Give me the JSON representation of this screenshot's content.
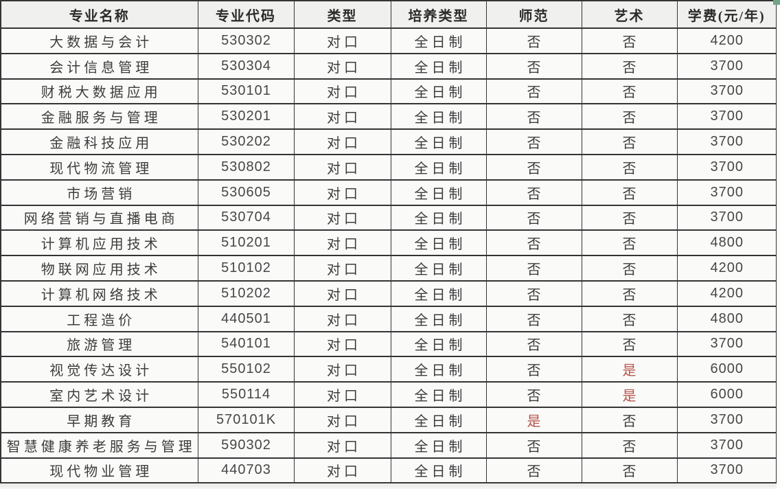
{
  "table": {
    "columns": [
      {
        "key": "name",
        "label": "专业名称"
      },
      {
        "key": "code",
        "label": "专业代码"
      },
      {
        "key": "type",
        "label": "类型"
      },
      {
        "key": "training",
        "label": "培养类型"
      },
      {
        "key": "normal",
        "label": "师范"
      },
      {
        "key": "art",
        "label": "艺术"
      },
      {
        "key": "tuition",
        "label": "学费(元/年)"
      }
    ],
    "rows": [
      {
        "name": "大数据与会计",
        "code": "530302",
        "type": "对口",
        "training": "全日制",
        "normal": "否",
        "art": "否",
        "tuition": "4200"
      },
      {
        "name": "会计信息管理",
        "code": "530304",
        "type": "对口",
        "training": "全日制",
        "normal": "否",
        "art": "否",
        "tuition": "3700"
      },
      {
        "name": "财税大数据应用",
        "code": "530101",
        "type": "对口",
        "training": "全日制",
        "normal": "否",
        "art": "否",
        "tuition": "3700"
      },
      {
        "name": "金融服务与管理",
        "code": "530201",
        "type": "对口",
        "training": "全日制",
        "normal": "否",
        "art": "否",
        "tuition": "3700"
      },
      {
        "name": "金融科技应用",
        "code": "530202",
        "type": "对口",
        "training": "全日制",
        "normal": "否",
        "art": "否",
        "tuition": "3700"
      },
      {
        "name": "现代物流管理",
        "code": "530802",
        "type": "对口",
        "training": "全日制",
        "normal": "否",
        "art": "否",
        "tuition": "3700"
      },
      {
        "name": "市场营销",
        "code": "530605",
        "type": "对口",
        "training": "全日制",
        "normal": "否",
        "art": "否",
        "tuition": "3700"
      },
      {
        "name": "网络营销与直播电商",
        "code": "530704",
        "type": "对口",
        "training": "全日制",
        "normal": "否",
        "art": "否",
        "tuition": "3700"
      },
      {
        "name": "计算机应用技术",
        "code": "510201",
        "type": "对口",
        "training": "全日制",
        "normal": "否",
        "art": "否",
        "tuition": "4800"
      },
      {
        "name": "物联网应用技术",
        "code": "510102",
        "type": "对口",
        "training": "全日制",
        "normal": "否",
        "art": "否",
        "tuition": "4200"
      },
      {
        "name": "计算机网络技术",
        "code": "510202",
        "type": "对口",
        "training": "全日制",
        "normal": "否",
        "art": "否",
        "tuition": "4200"
      },
      {
        "name": "工程造价",
        "code": "440501",
        "type": "对口",
        "training": "全日制",
        "normal": "否",
        "art": "否",
        "tuition": "4800"
      },
      {
        "name": "旅游管理",
        "code": "540101",
        "type": "对口",
        "training": "全日制",
        "normal": "否",
        "art": "否",
        "tuition": "3700"
      },
      {
        "name": "视觉传达设计",
        "code": "550102",
        "type": "对口",
        "training": "全日制",
        "normal": "否",
        "art": "是",
        "tuition": "6000"
      },
      {
        "name": "室内艺术设计",
        "code": "550114",
        "type": "对口",
        "training": "全日制",
        "normal": "否",
        "art": "是",
        "tuition": "6000"
      },
      {
        "name": "早期教育",
        "code": "570101K",
        "type": "对口",
        "training": "全日制",
        "normal": "是",
        "art": "否",
        "tuition": "3700"
      },
      {
        "name": "智慧健康养老服务与管理",
        "code": "590302",
        "type": "对口",
        "training": "全日制",
        "normal": "否",
        "art": "否",
        "tuition": "3700"
      },
      {
        "name": "现代物业管理",
        "code": "440703",
        "type": "对口",
        "training": "全日制",
        "normal": "否",
        "art": "否",
        "tuition": "3700"
      }
    ],
    "highlight_value": "是",
    "highlight_color": "#b5544a"
  },
  "decorations": {
    "corner_accent_color": "#73a386"
  }
}
